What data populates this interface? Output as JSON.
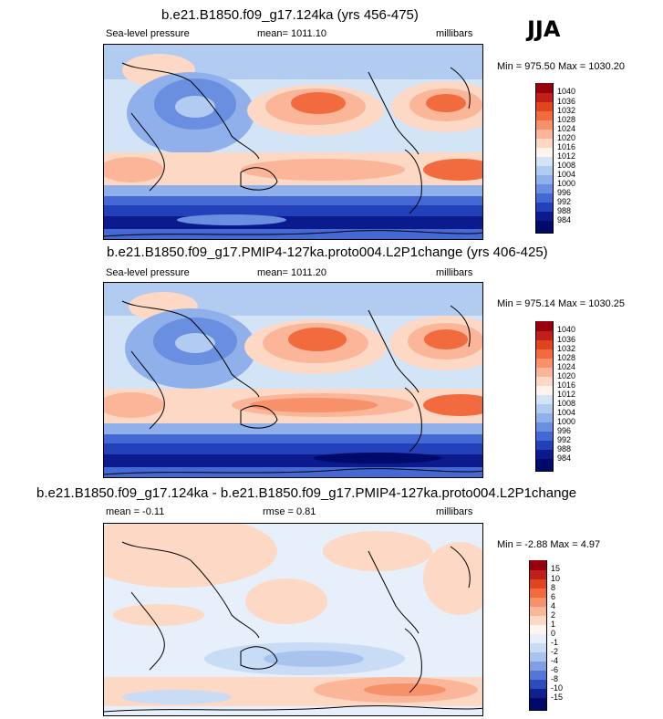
{
  "season": "JJA",
  "panels": [
    {
      "title": "b.e21.B1850.f09_g17.124ka (yrs 456-475)",
      "left_label": "Sea-level pressure",
      "mean_label": "mean= 1011.10",
      "units": "millibars",
      "minmax": "Min = 975.50 Max = 1030.20",
      "colorbar": [
        "1040",
        "1036",
        "1032",
        "1028",
        "1024",
        "1020",
        "1016",
        "1012",
        "1008",
        "1004",
        "1000",
        "996",
        "992",
        "988",
        "984"
      ]
    },
    {
      "title": "b.e21.B1850.f09_g17.PMIP4-127ka.proto004.L2P1change (yrs 406-425)",
      "left_label": "Sea-level pressure",
      "mean_label": "mean= 1011.20",
      "units": "millibars",
      "minmax": "Min = 975.14 Max = 1030.25",
      "colorbar": [
        "1040",
        "1036",
        "1032",
        "1028",
        "1024",
        "1020",
        "1016",
        "1012",
        "1008",
        "1004",
        "1000",
        "996",
        "992",
        "988",
        "984"
      ]
    },
    {
      "title": "b.e21.B1850.f09_g17.124ka - b.e21.B1850.f09_g17.PMIP4-127ka.proto004.L2P1change",
      "left_label": "mean =  -0.11",
      "mean_label": "rmse =   0.81",
      "units": "millibars",
      "minmax": "Min =  -2.88 Max =   4.97",
      "colorbar": [
        "15",
        "10",
        "8",
        "6",
        "4",
        "2",
        "1",
        "0",
        "-1",
        "-2",
        "-4",
        "-6",
        "-8",
        "-10",
        "-15"
      ]
    }
  ],
  "colors": {
    "abs_scale": [
      "#99000d",
      "#c1201a",
      "#e0451f",
      "#f26b3f",
      "#f7916a",
      "#fbb598",
      "#fdd8c4",
      "#fff3eb",
      "#d4e4f7",
      "#b1ccf0",
      "#8fb0ea",
      "#6a8fe0",
      "#4468d4",
      "#2240b8",
      "#0b1a8c",
      "#000a6a"
    ],
    "diff_scale": [
      "#99000d",
      "#c1201a",
      "#e0451f",
      "#f26b3f",
      "#f7916a",
      "#fbb598",
      "#fdd8c4",
      "#fff5ef",
      "#e7effa",
      "#c9dcf5",
      "#a8c4ee",
      "#809fe3",
      "#5577d4",
      "#2d4cbc",
      "#0f218f",
      "#000a6a"
    ]
  }
}
